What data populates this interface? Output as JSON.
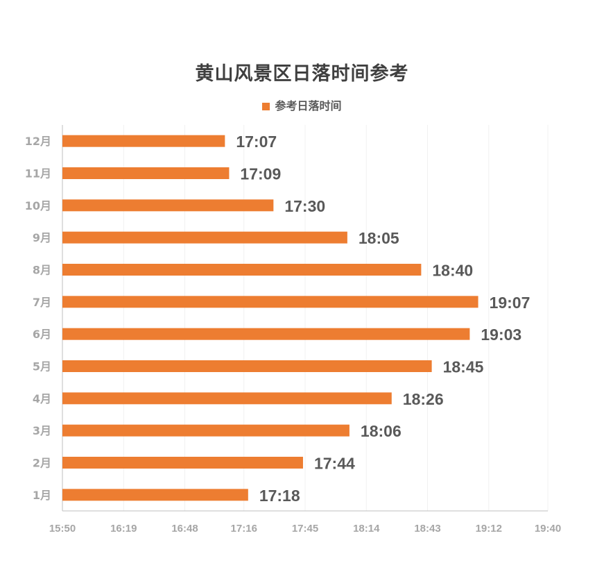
{
  "chart_data": {
    "type": "bar",
    "orientation": "horizontal",
    "title": "黄山风景区日落时间参考",
    "legend": {
      "position": "top",
      "entries": [
        "参考日落时间"
      ]
    },
    "series": [
      {
        "name": "参考日落时间",
        "color": "#ed7d31",
        "values": [
          "17:18",
          "17:44",
          "18:06",
          "18:26",
          "18:45",
          "19:03",
          "19:07",
          "18:40",
          "18:05",
          "17:30",
          "17:09",
          "17:07"
        ]
      }
    ],
    "categories": [
      "1月",
      "2月",
      "3月",
      "4月",
      "5月",
      "6月",
      "7月",
      "8月",
      "9月",
      "10月",
      "11月",
      "12月"
    ],
    "x_ticks": [
      "15:50",
      "16:19",
      "16:48",
      "17:16",
      "17:45",
      "18:14",
      "18:43",
      "19:12",
      "19:40"
    ],
    "xlim": [
      "15:50",
      "19:40"
    ],
    "grid": "vertical",
    "colors": {
      "bar": "#ed7d31",
      "axis_text": "#a6a6a6",
      "label_text": "#595959",
      "grid": "#f0f0f0",
      "axis_line": "#bfbfbf"
    }
  }
}
